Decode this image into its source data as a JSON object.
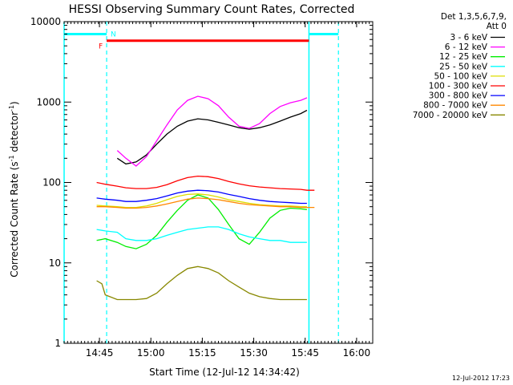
{
  "chart_data": {
    "type": "line",
    "title": "HESSI Observing Summary Count Rates, Corrected",
    "xlabel": "Start Time (12-Jul-12 14:34:42)",
    "ylabel_main": "Corrected Count Rate (s",
    "ylabel_sup1": "-1",
    "ylabel_mid": " detector",
    "ylabel_sup2": "-1",
    "ylabel_end": ")",
    "x_unit": "minutes since 14:34:42",
    "xlim": [
      0,
      90
    ],
    "ylim": [
      1,
      10000
    ],
    "yscale": "log",
    "x_ticks": [
      {
        "label": "14:45",
        "value": 10.3
      },
      {
        "label": "15:00",
        "value": 25.3
      },
      {
        "label": "15:15",
        "value": 40.3
      },
      {
        "label": "15:30",
        "value": 55.3
      },
      {
        "label": "15:45",
        "value": 70.3
      },
      {
        "label": "16:00",
        "value": 85.3
      }
    ],
    "y_ticks": [
      {
        "label": "1",
        "value": 1
      },
      {
        "label": "10",
        "value": 10
      },
      {
        "label": "100",
        "value": 100
      },
      {
        "label": "1000",
        "value": 1000
      },
      {
        "label": "10000",
        "value": 10000
      }
    ],
    "legend_header": [
      "Det 1,3,5,6,7,9,",
      "Att 0"
    ],
    "legend_placement": "outside-right",
    "series": [
      {
        "name": "3 - 6 keV",
        "color": "#000000",
        "x": [
          15.5,
          18,
          21,
          24,
          27,
          30,
          33,
          36,
          39,
          42,
          45,
          48,
          51,
          54,
          57,
          60,
          63,
          66,
          69,
          70.8
        ],
        "y": [
          200,
          170,
          180,
          220,
          300,
          400,
          500,
          580,
          620,
          600,
          560,
          520,
          480,
          460,
          480,
          520,
          580,
          650,
          720,
          790
        ]
      },
      {
        "name": "6 - 12 keV",
        "color": "#ff00ff",
        "x": [
          15.5,
          18,
          21,
          24,
          27,
          30,
          33,
          36,
          39,
          42,
          45,
          48,
          51,
          54,
          57,
          60,
          63,
          66,
          69,
          70.8
        ],
        "y": [
          250,
          200,
          160,
          210,
          330,
          520,
          800,
          1050,
          1180,
          1100,
          900,
          650,
          500,
          470,
          540,
          720,
          880,
          980,
          1050,
          1130
        ]
      },
      {
        "name": "12 - 25 keV",
        "color": "#00ee00",
        "x": [
          9.5,
          12,
          15.5,
          18,
          21,
          24,
          27,
          30,
          33,
          36,
          39,
          42,
          45,
          48,
          51,
          54,
          57,
          60,
          63,
          66,
          69,
          70.8
        ],
        "y": [
          19,
          20,
          18,
          16,
          15,
          17,
          22,
          32,
          45,
          60,
          70,
          64,
          46,
          30,
          20,
          17,
          24,
          36,
          45,
          48,
          47,
          46
        ]
      },
      {
        "name": "25 - 50 keV",
        "color": "#00ffff",
        "x": [
          9.5,
          12,
          15.5,
          18,
          21,
          24,
          27,
          30,
          33,
          36,
          39,
          42,
          45,
          48,
          51,
          54,
          57,
          60,
          63,
          66,
          69,
          70.8
        ],
        "y": [
          26,
          25,
          24,
          20,
          19,
          19,
          20,
          22,
          24,
          26,
          27,
          28,
          28,
          26,
          23,
          21,
          20,
          19,
          19,
          18,
          18,
          18
        ]
      },
      {
        "name": "50 - 100 keV",
        "color": "#dddd00",
        "x": [
          9.5,
          12,
          15.5,
          18,
          21,
          24,
          27,
          30,
          33,
          36,
          39,
          42,
          45,
          48,
          51,
          54,
          57,
          60,
          63,
          66,
          69,
          70.8
        ],
        "y": [
          52,
          51,
          50,
          49,
          49,
          51,
          55,
          61,
          67,
          71,
          72,
          70,
          66,
          61,
          58,
          55,
          53,
          52,
          51,
          51,
          50,
          50
        ]
      },
      {
        "name": "100 - 300 keV",
        "color": "#ff0000",
        "x": [
          9.5,
          12,
          15.5,
          18,
          21,
          24,
          27,
          30,
          33,
          36,
          39,
          42,
          45,
          48,
          51,
          54,
          57,
          60,
          63,
          66,
          69,
          70.8,
          73
        ],
        "y": [
          100,
          95,
          90,
          86,
          84,
          84,
          87,
          94,
          105,
          115,
          120,
          118,
          112,
          103,
          96,
          91,
          88,
          86,
          84,
          83,
          82,
          80,
          80
        ]
      },
      {
        "name": "300 - 800 keV",
        "color": "#0000ff",
        "x": [
          9.5,
          12,
          15.5,
          18,
          21,
          24,
          27,
          30,
          33,
          36,
          39,
          42,
          45,
          48,
          51,
          54,
          57,
          60,
          63,
          66,
          69,
          70.8
        ],
        "y": [
          64,
          62,
          60,
          58,
          58,
          60,
          63,
          68,
          74,
          78,
          80,
          79,
          76,
          71,
          67,
          63,
          60,
          58,
          57,
          56,
          55,
          55
        ]
      },
      {
        "name": "800 - 7000 keV",
        "color": "#ff8800",
        "x": [
          9.5,
          12,
          15.5,
          18,
          21,
          24,
          27,
          30,
          33,
          36,
          39,
          42,
          45,
          48,
          51,
          54,
          57,
          60,
          63,
          66,
          69,
          70.8,
          73
        ],
        "y": [
          50,
          50,
          49,
          48,
          48,
          49,
          51,
          54,
          58,
          62,
          64,
          63,
          61,
          58,
          55,
          53,
          52,
          51,
          50,
          50,
          49,
          49,
          49
        ]
      },
      {
        "name": "7000 - 20000 keV",
        "color": "#888800",
        "x": [
          9.5,
          11,
          12,
          15.5,
          18,
          21,
          24,
          27,
          30,
          33,
          36,
          39,
          42,
          45,
          48,
          51,
          54,
          57,
          60,
          63,
          66,
          69,
          70.8
        ],
        "y": [
          6,
          5.5,
          4,
          3.5,
          3.5,
          3.5,
          3.6,
          4.2,
          5.5,
          7,
          8.5,
          9,
          8.5,
          7.5,
          6,
          5,
          4.2,
          3.8,
          3.6,
          3.5,
          3.5,
          3.5,
          3.5
        ]
      }
    ],
    "markers": {
      "night_label": "N",
      "flag_label": "F",
      "night_color": "#00ffff",
      "flag_color": "#ff0000",
      "night_bar_segments": [
        [
          0,
          12.4
        ],
        [
          71.4,
          80
        ]
      ],
      "night_bar_level": 7000,
      "flag_bar_span": [
        12.4,
        71.4
      ],
      "flag_bar_level": 5800,
      "vertical_solid_lines": [
        0,
        71.4
      ],
      "vertical_dashed_lines": [
        12.4,
        80
      ]
    },
    "footer_date": "12-Jul-2012 17:23"
  }
}
